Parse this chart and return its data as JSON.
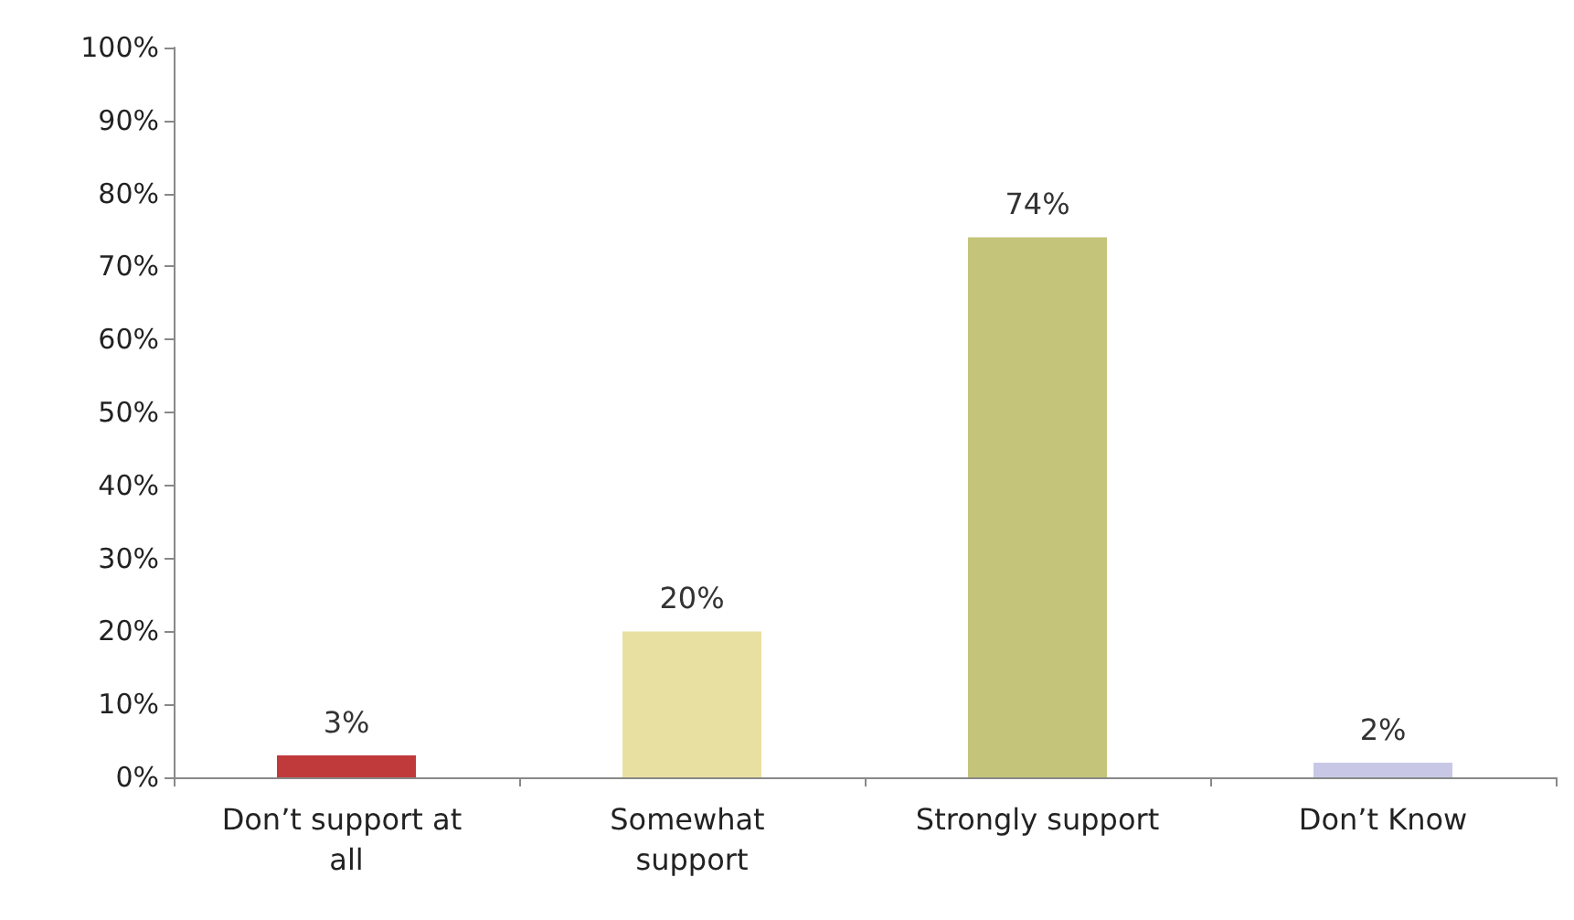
{
  "chart_data": {
    "type": "bar",
    "categories": [
      "Don’t support at all",
      "Somewhat support",
      "Strongly support",
      "Don’t Know"
    ],
    "values": [
      3,
      20,
      74,
      2
    ],
    "colors": [
      "#c0393b",
      "#e8e0a0",
      "#c4c47a",
      "#c8c8e6"
    ],
    "value_labels": [
      "3%",
      "20%",
      "74%",
      "2%"
    ],
    "ylim": [
      0,
      100
    ],
    "yticks": [
      {
        "value": 0,
        "label": "0%"
      },
      {
        "value": 10,
        "label": "10%"
      },
      {
        "value": 20,
        "label": "20%"
      },
      {
        "value": 30,
        "label": "30%"
      },
      {
        "value": 40,
        "label": "40%"
      },
      {
        "value": 50,
        "label": "50%"
      },
      {
        "value": 60,
        "label": "60%"
      },
      {
        "value": 70,
        "label": "70%"
      },
      {
        "value": 80,
        "label": "80%"
      },
      {
        "value": 90,
        "label": "90%"
      },
      {
        "value": 100,
        "label": "100%"
      }
    ],
    "grid": false
  }
}
